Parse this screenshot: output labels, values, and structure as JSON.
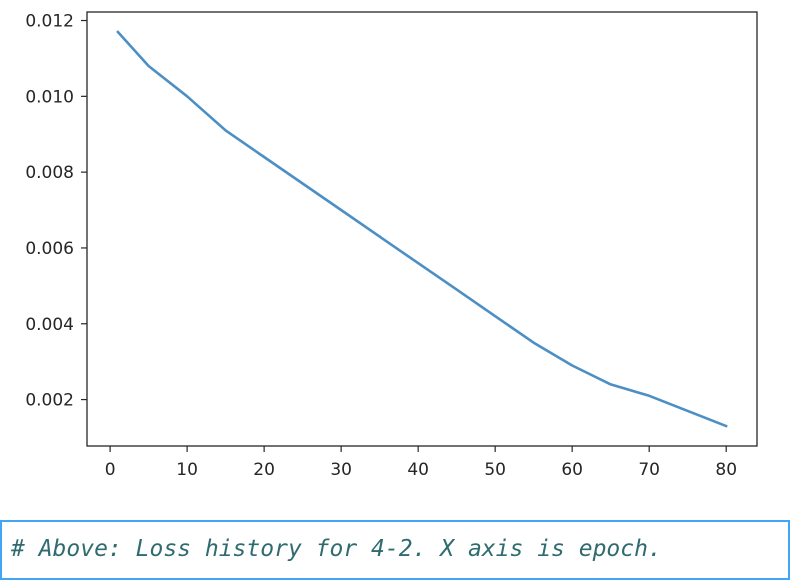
{
  "output": {
    "chart_data": {
      "type": "line",
      "xlim": [
        -3.0,
        84.0
      ],
      "ylim": [
        0.000775,
        0.012225
      ],
      "x_ticks": [
        0,
        10,
        20,
        30,
        40,
        50,
        60,
        70,
        80
      ],
      "x_tick_labels": [
        "0",
        "10",
        "20",
        "30",
        "40",
        "50",
        "60",
        "70",
        "80"
      ],
      "y_ticks": [
        0.002,
        0.004,
        0.006,
        0.008,
        0.01,
        0.012
      ],
      "y_tick_labels": [
        "0.002",
        "0.004",
        "0.006",
        "0.008",
        "0.010",
        "0.012"
      ],
      "grid": false,
      "line_color": "#4c8fc5",
      "series": [
        {
          "x": [
            1,
            5,
            10,
            15,
            20,
            25,
            30,
            35,
            40,
            45,
            50,
            55,
            60,
            65,
            70,
            75,
            80
          ],
          "y": [
            0.0117,
            0.0108,
            0.01,
            0.0091,
            0.0084,
            0.0077,
            0.007,
            0.0063,
            0.0056,
            0.0049,
            0.0042,
            0.0035,
            0.0029,
            0.0024,
            0.0021,
            0.0017,
            0.0013
          ]
        }
      ]
    }
  },
  "markdown": {
    "text": "# Above: Loss history for 4-2. X axis is epoch.",
    "text_color": "#2f6b6f",
    "border_color": "#42a5f5"
  }
}
